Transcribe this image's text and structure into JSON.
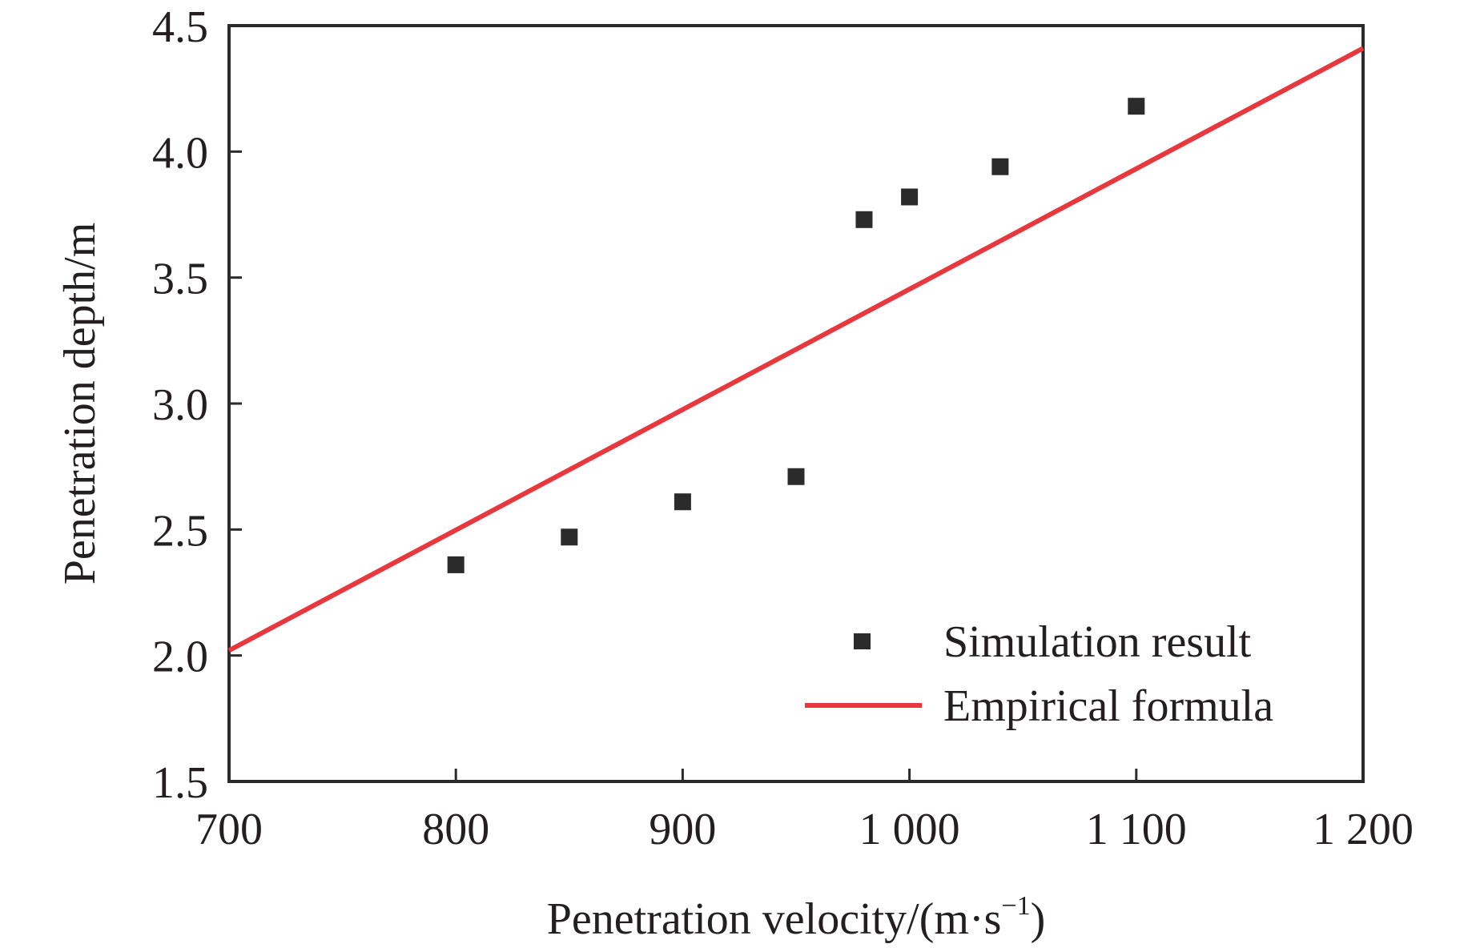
{
  "chart_data": {
    "type": "scatter",
    "title": "",
    "xlabel": "Penetration velocity/(m·s",
    "xlabel_superscript": "−1",
    "xlabel_suffix": ")",
    "ylabel": "Penetration depth/m",
    "xlim": [
      700,
      1200
    ],
    "ylim": [
      1.5,
      4.5
    ],
    "x_ticks": [
      700,
      800,
      900,
      1000,
      1100,
      1200
    ],
    "x_tick_labels": [
      "700",
      "800",
      "900",
      "1 000",
      "1 100",
      "1 200"
    ],
    "y_ticks": [
      1.5,
      2.0,
      2.5,
      3.0,
      3.5,
      4.0,
      4.5
    ],
    "y_tick_labels": [
      "1.5",
      "2.0",
      "2.5",
      "3.0",
      "3.5",
      "4.0",
      "4.5"
    ],
    "grid": false,
    "legend_position": "bottom-right",
    "series": [
      {
        "name": "Simulation result",
        "kind": "scatter",
        "marker": "square",
        "color": "#2b2b2b",
        "x": [
          800,
          850,
          900,
          950,
          980,
          1000,
          1040,
          1100
        ],
        "y": [
          2.36,
          2.47,
          2.61,
          2.71,
          3.73,
          3.82,
          3.94,
          4.18
        ]
      },
      {
        "name": "Empirical formula",
        "kind": "line",
        "color": "#e8383d",
        "x": [
          700,
          1200
        ],
        "y": [
          2.02,
          4.41
        ]
      }
    ]
  }
}
